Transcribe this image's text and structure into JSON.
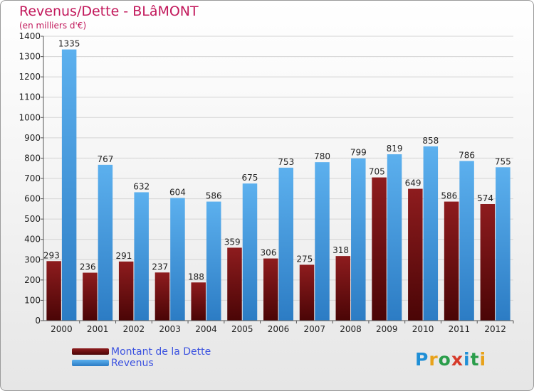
{
  "header": {
    "title": "Revenus/Dette - BLâMONT",
    "subtitle": "(en milliers d'€)"
  },
  "legend": {
    "items": [
      {
        "label": "Montant de la Dette",
        "color": "#7a1416"
      },
      {
        "label": "Revenus",
        "color": "#4aa3e8"
      }
    ]
  },
  "logo": {
    "text": "Proxiti"
  },
  "chart_data": {
    "type": "bar",
    "title": "Revenus/Dette - BLâMONT",
    "ylabel": "(en milliers d'€)",
    "categories": [
      "2000",
      "2001",
      "2002",
      "2003",
      "2004",
      "2005",
      "2006",
      "2007",
      "2008",
      "2009",
      "2010",
      "2011",
      "2012"
    ],
    "series": [
      {
        "name": "Montant de la Dette",
        "color": "#7a1416",
        "values": [
          293,
          236,
          291,
          237,
          188,
          359,
          306,
          275,
          318,
          705,
          649,
          586,
          574
        ]
      },
      {
        "name": "Revenus",
        "color": "#4aa3e8",
        "values": [
          1335,
          767,
          632,
          604,
          586,
          675,
          753,
          780,
          799,
          819,
          858,
          786,
          755
        ]
      }
    ],
    "ylim": [
      0,
      1400
    ],
    "yticks": [
      0,
      100,
      200,
      300,
      400,
      500,
      600,
      700,
      800,
      900,
      1000,
      1100,
      1200,
      1300,
      1400
    ],
    "grid": true,
    "legend_position": "bottom-left"
  }
}
